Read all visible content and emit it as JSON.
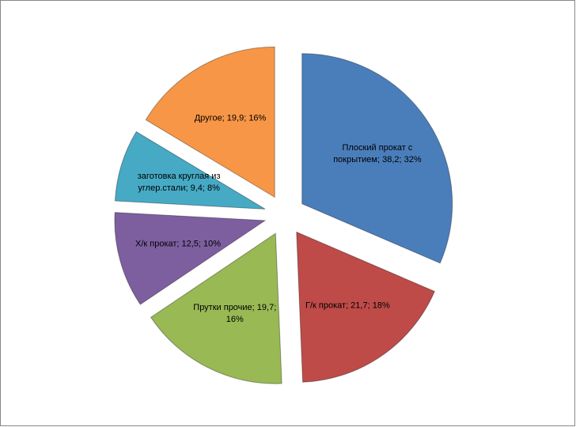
{
  "chart_data": {
    "type": "pie",
    "values": [
      38.2,
      21.7,
      19.7,
      12.5,
      9.4,
      19.9
    ],
    "value_labels": [
      "Плоский прокат с покрытием; 38,2; 32%",
      "Г/к прокат; 21,7; 18%",
      "Прутки прочие; 19,7; 16%",
      "Х/к прокат;  12,5; 10%",
      "заготовка круглая из углер.стали; 9,4; 8%",
      "Другое; 19,9; 16%"
    ],
    "colors": [
      "#4a7ebb",
      "#be4b48",
      "#98b954",
      "#7d5fa0",
      "#46aac5",
      "#f79646"
    ]
  }
}
